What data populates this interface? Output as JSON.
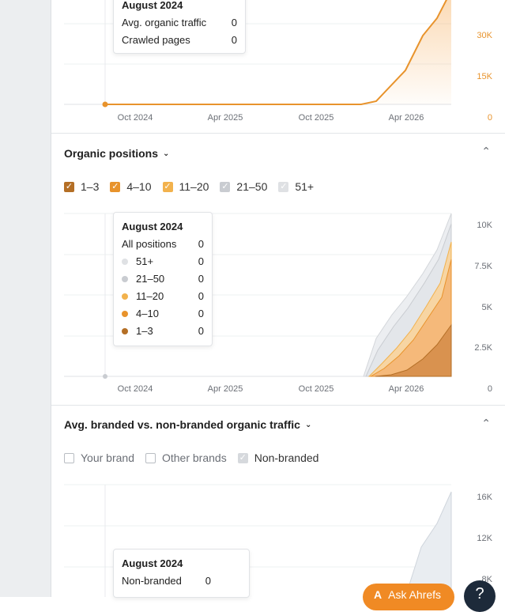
{
  "traffic_chart": {
    "tooltip": {
      "title": "August 2024",
      "rows": [
        {
          "label": "Avg. organic traffic",
          "value": "0"
        },
        {
          "label": "Crawled pages",
          "value": "0"
        }
      ]
    },
    "chart_data": {
      "type": "line",
      "x_ticks": [
        "Oct 2024",
        "Apr 2025",
        "Oct 2025",
        "Apr 2026"
      ],
      "y_ticks": [
        "30K",
        "15K",
        "0"
      ],
      "series": [
        {
          "color": "#e8932c",
          "x": [
            "2024-08",
            "2024-10",
            "2025-04",
            "2025-10",
            "2026-02",
            "2026-03",
            "2026-04",
            "2026-05",
            "2026-06",
            "2026-07"
          ],
          "values": [
            0,
            0,
            0,
            0,
            0,
            1000,
            13000,
            25000,
            36000,
            47000
          ]
        }
      ]
    }
  },
  "positions_section": {
    "title": "Organic positions",
    "filters": [
      {
        "label": "1–3",
        "checked": true,
        "color": "#b46f26"
      },
      {
        "label": "4–10",
        "checked": true,
        "color": "#e8932c"
      },
      {
        "label": "11–20",
        "checked": true,
        "color": "#f2b24d"
      },
      {
        "label": "21–50",
        "checked": true,
        "color": "#c9ccd1"
      },
      {
        "label": "51+",
        "checked": true,
        "color": "#dfe1e4"
      }
    ],
    "tooltip": {
      "title": "August 2024",
      "total_label": "All positions",
      "total_value": "0",
      "rows": [
        {
          "label": "51+",
          "value": "0",
          "color": "#dfe1e4"
        },
        {
          "label": "21–50",
          "value": "0",
          "color": "#c9ccd1"
        },
        {
          "label": "11–20",
          "value": "0",
          "color": "#f2b24d"
        },
        {
          "label": "4–10",
          "value": "0",
          "color": "#e8932c"
        },
        {
          "label": "1–3",
          "value": "0",
          "color": "#b46f26"
        }
      ]
    },
    "chart_data": {
      "type": "area",
      "x_ticks": [
        "Oct 2024",
        "Apr 2025",
        "Oct 2025",
        "Apr 2026"
      ],
      "y_ticks": [
        "10K",
        "7.5K",
        "5K",
        "2.5K",
        "0"
      ]
    }
  },
  "branded_section": {
    "title": "Avg. branded vs. non-branded organic traffic",
    "filters": [
      {
        "label": "Your brand",
        "checked": false
      },
      {
        "label": "Other brands",
        "checked": false
      },
      {
        "label": "Non-branded",
        "checked": true
      }
    ],
    "tooltip": {
      "title": "August 2024",
      "rows": [
        {
          "label": "Non-branded",
          "value": "0"
        }
      ]
    },
    "chart_data": {
      "type": "area",
      "y_ticks": [
        "16K",
        "12K",
        "8K"
      ]
    }
  },
  "ask_button": {
    "label": "Ask Ahrefs",
    "icon": "A"
  },
  "help_button": {
    "label": "?"
  }
}
